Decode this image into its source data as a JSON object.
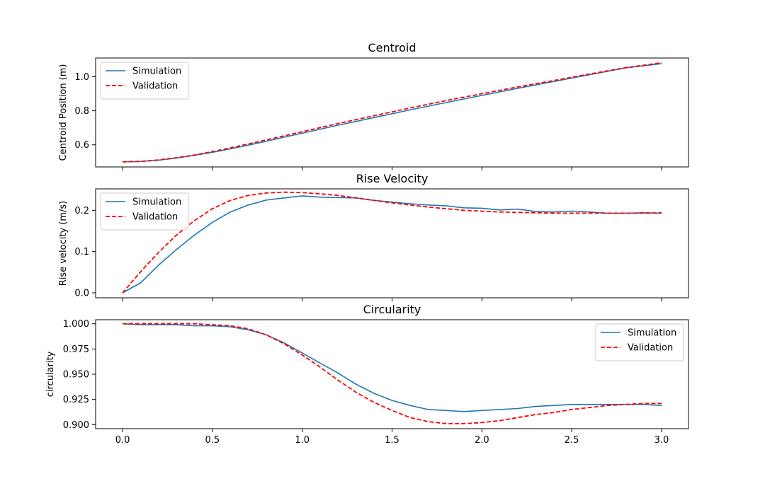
{
  "colors": {
    "simulation": "#1f77b4",
    "validation": "#ff0000",
    "axes": "#000000",
    "background": "#ffffff"
  },
  "chart_data": [
    {
      "type": "line",
      "title": "Centroid",
      "xlabel": "",
      "ylabel": "Centroid Position (m)",
      "xlim": [
        -0.15,
        3.15
      ],
      "ylim": [
        0.47,
        1.11
      ],
      "xticks": [
        "0.0",
        "0.5",
        "1.0",
        "1.5",
        "2.0",
        "2.5",
        "3.0"
      ],
      "yticks": [
        "0.6",
        "0.8",
        "1.0"
      ],
      "show_x_tick_labels": false,
      "grid": false,
      "legend_position": "upper-left",
      "series": [
        {
          "name": "Simulation",
          "style": "solid",
          "x": [
            0.0,
            0.1,
            0.2,
            0.3,
            0.4,
            0.5,
            0.6,
            0.7,
            0.8,
            0.9,
            1.0,
            1.2,
            1.4,
            1.6,
            1.8,
            2.0,
            2.2,
            2.4,
            2.6,
            2.8,
            3.0
          ],
          "y": [
            0.5,
            0.502,
            0.51,
            0.522,
            0.538,
            0.556,
            0.576,
            0.598,
            0.621,
            0.645,
            0.668,
            0.715,
            0.76,
            0.805,
            0.848,
            0.89,
            0.932,
            0.972,
            1.012,
            1.052,
            1.077
          ]
        },
        {
          "name": "Validation",
          "style": "dashed",
          "x": [
            0.0,
            0.1,
            0.2,
            0.3,
            0.4,
            0.5,
            0.6,
            0.7,
            0.8,
            0.9,
            1.0,
            1.2,
            1.4,
            1.6,
            1.8,
            2.0,
            2.2,
            2.4,
            2.6,
            2.8,
            3.0
          ],
          "y": [
            0.5,
            0.503,
            0.511,
            0.524,
            0.54,
            0.56,
            0.582,
            0.605,
            0.629,
            0.653,
            0.677,
            0.725,
            0.771,
            0.816,
            0.86,
            0.9,
            0.94,
            0.978,
            1.016,
            1.053,
            1.082
          ]
        }
      ]
    },
    {
      "type": "line",
      "title": "Rise Velocity",
      "xlabel": "",
      "ylabel": "Rise velocity (m/s)",
      "xlim": [
        -0.15,
        3.15
      ],
      "ylim": [
        -0.012,
        0.252
      ],
      "xticks": [
        "0.0",
        "0.5",
        "1.0",
        "1.5",
        "2.0",
        "2.5",
        "3.0"
      ],
      "yticks": [
        "0.0",
        "0.1",
        "0.2"
      ],
      "show_x_tick_labels": false,
      "grid": false,
      "legend_position": "upper-left",
      "series": [
        {
          "name": "Simulation",
          "style": "solid",
          "x": [
            0.0,
            0.1,
            0.2,
            0.3,
            0.4,
            0.5,
            0.6,
            0.7,
            0.8,
            0.9,
            1.0,
            1.1,
            1.2,
            1.3,
            1.4,
            1.5,
            1.6,
            1.7,
            1.8,
            1.9,
            2.0,
            2.1,
            2.2,
            2.3,
            2.4,
            2.5,
            2.6,
            2.7,
            2.8,
            2.9,
            3.0
          ],
          "y": [
            0.0,
            0.024,
            0.067,
            0.105,
            0.14,
            0.171,
            0.196,
            0.213,
            0.225,
            0.23,
            0.235,
            0.232,
            0.231,
            0.23,
            0.224,
            0.22,
            0.216,
            0.213,
            0.211,
            0.206,
            0.205,
            0.201,
            0.203,
            0.197,
            0.196,
            0.198,
            0.196,
            0.193,
            0.193,
            0.194,
            0.193
          ]
        },
        {
          "name": "Validation",
          "style": "dashed",
          "x": [
            0.0,
            0.1,
            0.2,
            0.3,
            0.4,
            0.5,
            0.6,
            0.7,
            0.8,
            0.9,
            1.0,
            1.1,
            1.2,
            1.3,
            1.4,
            1.5,
            1.6,
            1.7,
            1.8,
            1.9,
            2.0,
            2.1,
            2.2,
            2.3,
            2.4,
            2.5,
            2.6,
            2.7,
            2.8,
            2.9,
            3.0
          ],
          "y": [
            0.0,
            0.051,
            0.098,
            0.14,
            0.175,
            0.204,
            0.224,
            0.236,
            0.242,
            0.244,
            0.243,
            0.24,
            0.236,
            0.23,
            0.224,
            0.218,
            0.213,
            0.208,
            0.204,
            0.2,
            0.198,
            0.196,
            0.195,
            0.194,
            0.193,
            0.193,
            0.193,
            0.193,
            0.193,
            0.193,
            0.194
          ]
        }
      ]
    },
    {
      "type": "line",
      "title": "Circularity",
      "xlabel": "",
      "ylabel": "circularity",
      "xlim": [
        -0.15,
        3.15
      ],
      "ylim": [
        0.896,
        1.004
      ],
      "xticks": [
        "0.0",
        "0.5",
        "1.0",
        "1.5",
        "2.0",
        "2.5",
        "3.0"
      ],
      "yticks": [
        "0.900",
        "0.925",
        "0.950",
        "0.975",
        "1.000"
      ],
      "show_x_tick_labels": true,
      "grid": false,
      "legend_position": "upper-right",
      "series": [
        {
          "name": "Simulation",
          "style": "solid",
          "x": [
            0.0,
            0.1,
            0.2,
            0.3,
            0.4,
            0.5,
            0.6,
            0.7,
            0.8,
            0.9,
            1.0,
            1.1,
            1.2,
            1.3,
            1.4,
            1.5,
            1.6,
            1.7,
            1.8,
            1.9,
            2.0,
            2.1,
            2.2,
            2.3,
            2.4,
            2.5,
            2.6,
            2.7,
            2.8,
            2.9,
            3.0
          ],
          "y": [
            1.0,
            0.999,
            0.999,
            0.999,
            0.998,
            0.998,
            0.997,
            0.994,
            0.989,
            0.981,
            0.971,
            0.961,
            0.951,
            0.94,
            0.931,
            0.924,
            0.919,
            0.915,
            0.914,
            0.913,
            0.914,
            0.915,
            0.916,
            0.918,
            0.919,
            0.92,
            0.92,
            0.92,
            0.92,
            0.92,
            0.919
          ]
        },
        {
          "name": "Validation",
          "style": "dashed",
          "x": [
            0.0,
            0.1,
            0.2,
            0.3,
            0.4,
            0.5,
            0.6,
            0.7,
            0.8,
            0.9,
            1.0,
            1.1,
            1.2,
            1.3,
            1.4,
            1.5,
            1.6,
            1.7,
            1.8,
            1.9,
            2.0,
            2.1,
            2.2,
            2.3,
            2.4,
            2.5,
            2.6,
            2.7,
            2.8,
            2.9,
            3.0
          ],
          "y": [
            1.0,
            1.0,
            1.0,
            1.0,
            1.0,
            0.999,
            0.998,
            0.995,
            0.989,
            0.98,
            0.969,
            0.957,
            0.944,
            0.932,
            0.922,
            0.914,
            0.907,
            0.903,
            0.901,
            0.901,
            0.902,
            0.904,
            0.907,
            0.91,
            0.912,
            0.915,
            0.917,
            0.919,
            0.92,
            0.921,
            0.921
          ]
        }
      ]
    }
  ]
}
